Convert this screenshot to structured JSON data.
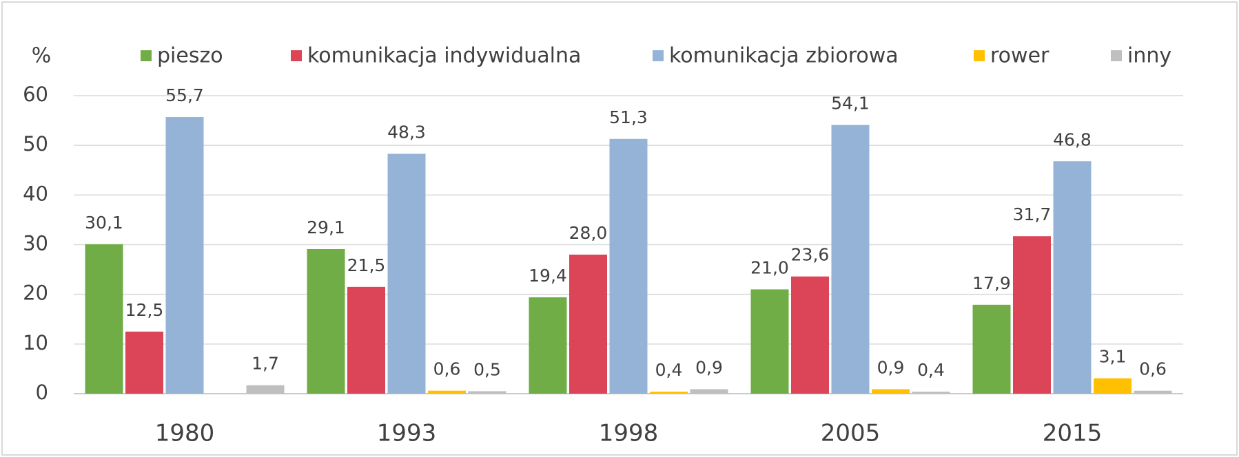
{
  "chart_data": {
    "type": "bar",
    "ylabel": "%",
    "categories": [
      "1980",
      "1993",
      "1998",
      "2005",
      "2015"
    ],
    "series": [
      {
        "name": "pieszo",
        "color": "#70ad47",
        "values": [
          30.1,
          29.1,
          19.4,
          21.0,
          17.9
        ],
        "value_labels": [
          "30,1",
          "29,1",
          "19,4",
          "21,0",
          "17,9"
        ]
      },
      {
        "name": "komunikacja indywidualna",
        "color": "#dc4558",
        "values": [
          12.5,
          21.5,
          28.0,
          23.6,
          31.7
        ],
        "value_labels": [
          "12,5",
          "21,5",
          "28,0",
          "23,6",
          "31,7"
        ]
      },
      {
        "name": "komunikacja zbiorowa",
        "color": "#95b3d7",
        "values": [
          55.7,
          48.3,
          51.3,
          54.1,
          46.8
        ],
        "value_labels": [
          "55,7",
          "48,3",
          "51,3",
          "54,1",
          "46,8"
        ]
      },
      {
        "name": "rower",
        "color": "#ffc000",
        "values": [
          null,
          0.6,
          0.4,
          0.9,
          3.1
        ],
        "value_labels": [
          null,
          "0,6",
          "0,4",
          "0,9",
          "3,1"
        ]
      },
      {
        "name": "inny",
        "color": "#bfbfbf",
        "values": [
          1.7,
          0.5,
          0.9,
          0.4,
          0.6
        ],
        "value_labels": [
          "1,7",
          "0,5",
          "0,9",
          "0,4",
          "0,6"
        ]
      }
    ],
    "ylim": [
      0,
      60
    ],
    "yticks": [
      0,
      10,
      20,
      30,
      40,
      50,
      60
    ],
    "grid": true,
    "legend": "top"
  }
}
